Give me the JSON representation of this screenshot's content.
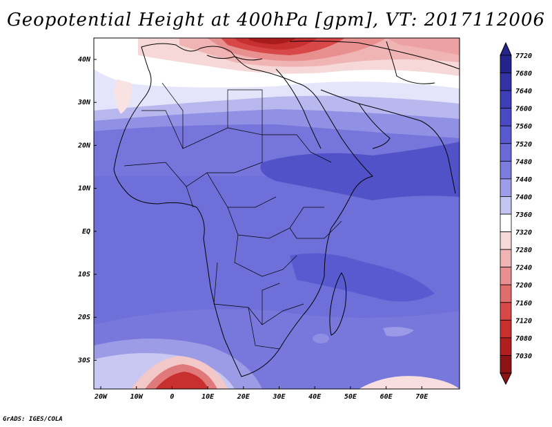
{
  "title": "Geopotential Height at 400hPa [gpm], VT: 2017112006",
  "credit": "GrADS: IGES/COLA",
  "map": {
    "lat_labels": [
      "40N",
      "30N",
      "20N",
      "10N",
      "EQ",
      "10S",
      "20S",
      "30S"
    ],
    "lon_labels": [
      "20W",
      "10W",
      "0",
      "10E",
      "20E",
      "30E",
      "40E",
      "50E",
      "60E",
      "70E"
    ]
  },
  "colorbar": {
    "levels": [
      "7720",
      "7680",
      "7640",
      "7600",
      "7560",
      "7520",
      "7480",
      "7440",
      "7400",
      "7360",
      "7320",
      "7280",
      "7240",
      "7200",
      "7160",
      "7120",
      "7080",
      "7030"
    ],
    "colors": [
      "#23238c",
      "#3232a5",
      "#3e3eb8",
      "#4a4ac4",
      "#5a5ad0",
      "#6a6ad8",
      "#7b7be0",
      "#9e9ee8",
      "#c4c4f2",
      "#ffffff",
      "#f6d8d8",
      "#f0b4b4",
      "#e89090",
      "#e06c6c",
      "#d84848",
      "#c83030",
      "#b01e1e",
      "#8c1414"
    ]
  }
}
